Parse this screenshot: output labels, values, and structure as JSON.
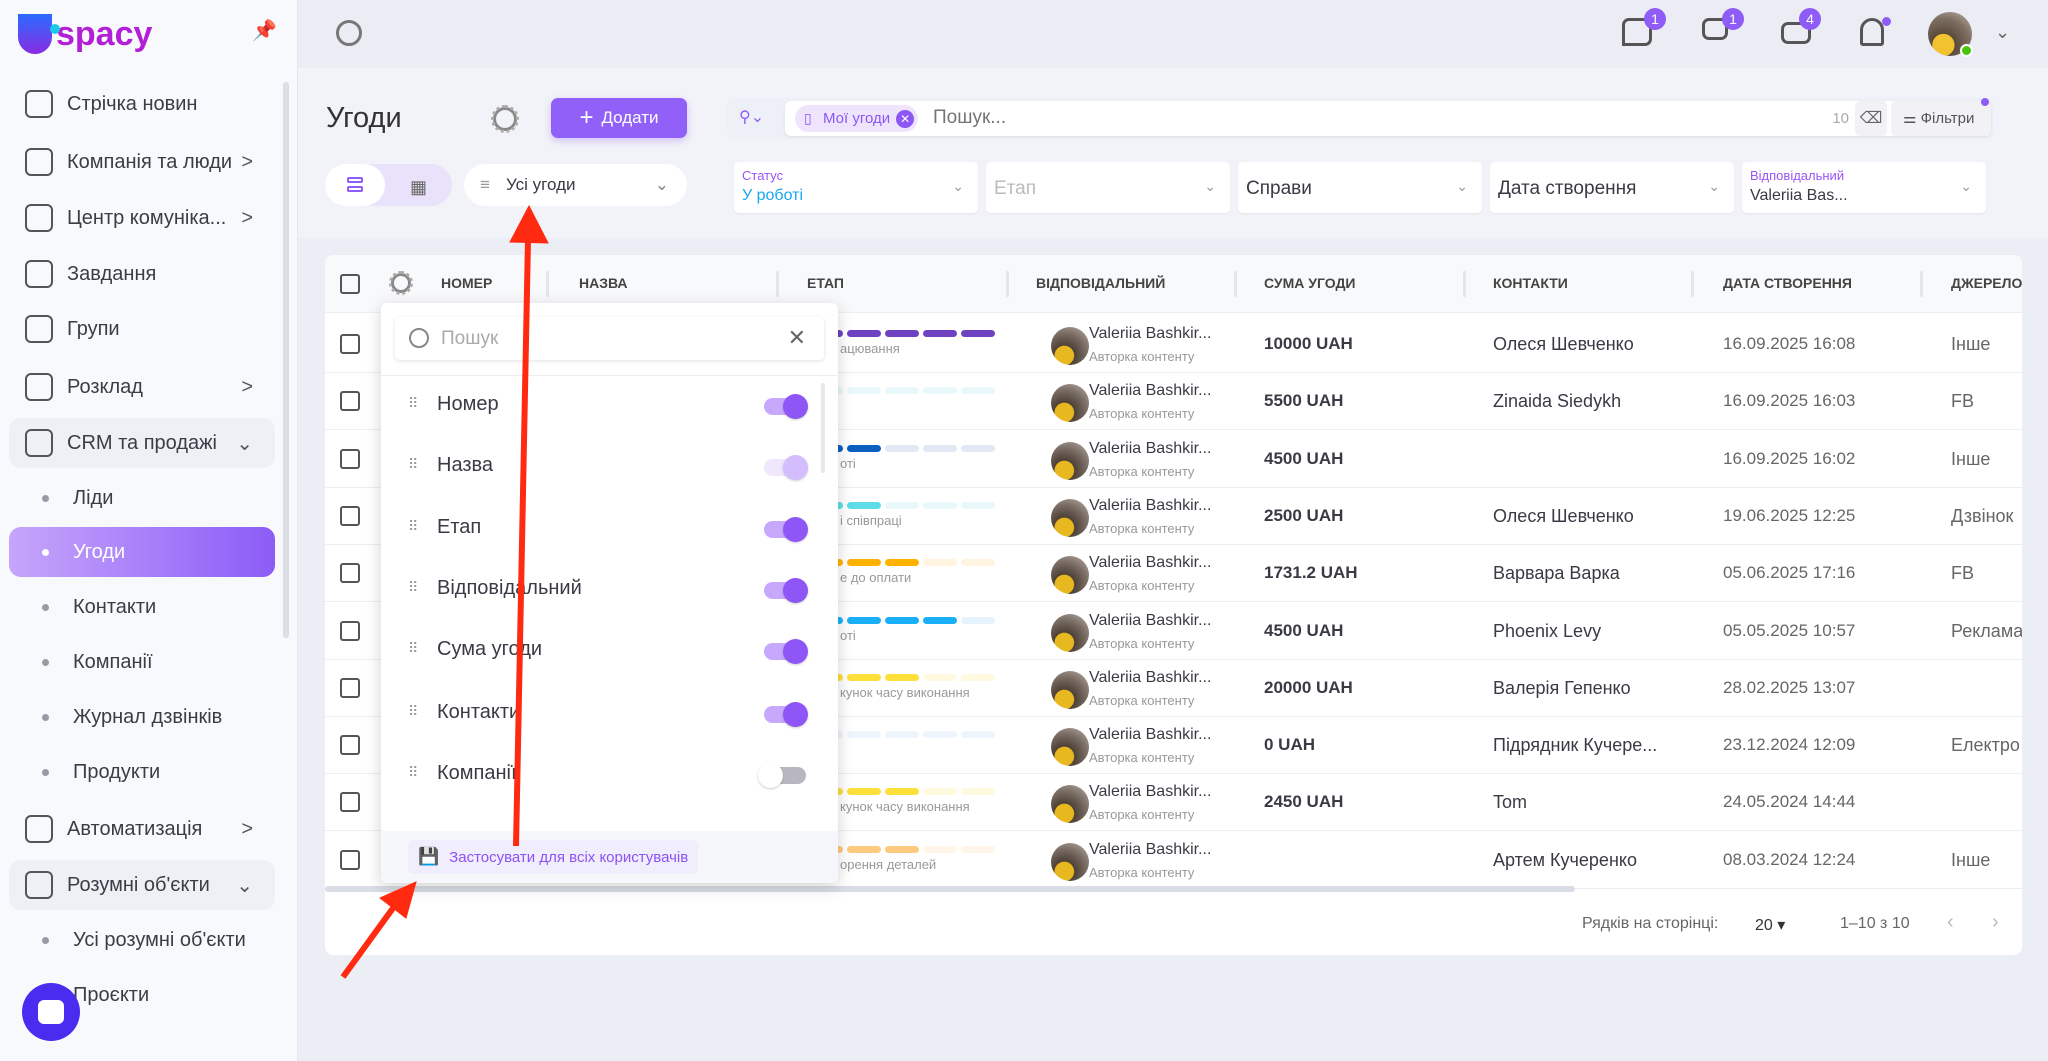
{
  "app": {
    "logo": "spacy"
  },
  "sidebar": {
    "items": [
      {
        "label": "Стрічка новин",
        "icon": "home-icon"
      },
      {
        "label": "Компанія та люди",
        "icon": "building-icon",
        "chevron": ">"
      },
      {
        "label": "Центр комуніка...",
        "icon": "chat-edit-icon",
        "chevron": ">"
      },
      {
        "label": "Завдання",
        "icon": "check-circle-icon"
      },
      {
        "label": "Групи",
        "icon": "users-icon"
      },
      {
        "label": "Розклад",
        "icon": "calendar-icon",
        "chevron": ">"
      },
      {
        "label": "CRM та продажі",
        "icon": "database-icon",
        "chevron": "⌄",
        "group": true
      },
      {
        "label": "Ліди",
        "sub": true
      },
      {
        "label": "Угоди",
        "sub": true,
        "active": true
      },
      {
        "label": "Контакти",
        "sub": true
      },
      {
        "label": "Компанії",
        "sub": true
      },
      {
        "label": "Журнал дзвінків",
        "sub": true
      },
      {
        "label": "Продукти",
        "sub": true
      },
      {
        "label": "Автоматизація",
        "icon": "lightning-icon",
        "chevron": ">"
      },
      {
        "label": "Розумні об'єкти",
        "icon": "scan-icon",
        "chevron": "⌄",
        "group": true
      },
      {
        "label": "Усі розумні об'єкти",
        "sub": true
      },
      {
        "label": "Проєкти",
        "sub": true
      }
    ]
  },
  "topbar": {
    "badges": {
      "comments": "1",
      "chats": "1",
      "mail": "4"
    }
  },
  "header": {
    "title": "Угоди",
    "add_label": "Додати",
    "view_select": "Усі угоди",
    "search": {
      "chip": "Мої угоди",
      "placeholder": "Пошук...",
      "count": "10",
      "filters_label": "Фільтри"
    },
    "filters": [
      {
        "label": "Статус",
        "value": "У роботі"
      },
      {
        "placeholder": "Етап"
      },
      {
        "value": "Справи"
      },
      {
        "value": "Дата створення"
      },
      {
        "label": "Відповідальний",
        "value": "Valeriia Bas..."
      }
    ]
  },
  "table": {
    "columns": [
      "НОМЕР",
      "НАЗВА",
      "ЕТАП",
      "ВІДПОВІДАЛЬНИЙ",
      "СУМА УГОДИ",
      "КОНТАКТИ",
      "ДАТА СТВОРЕННЯ",
      "ДЖЕРЕЛО"
    ],
    "rows": [
      {
        "stage": "ацювання",
        "stage_color": "#6f42c1",
        "stage_bg": "#e9e0f8",
        "filled": 5,
        "resp": "Valeriia Bashkir...",
        "role": "Авторка контенту",
        "sum": "10000 UAH",
        "contact": "Олеся Шевченко",
        "date": "16.09.2025 16:08",
        "source": "Інше"
      },
      {
        "stage": "",
        "stage_color": "#c9f1f5",
        "stage_bg": "#e9f8fa",
        "filled": 0,
        "resp": "Valeriia Bashkir...",
        "role": "Авторка контенту",
        "sum": "5500 UAH",
        "contact": "Zinaida Siedykh",
        "date": "16.09.2025 16:03",
        "source": "FB"
      },
      {
        "stage": "оті",
        "stage_color": "#0b5fc0",
        "stage_bg": "#e2e9f5",
        "filled": 2,
        "resp": "Valeriia Bashkir...",
        "role": "Авторка контенту",
        "sum": "4500 UAH",
        "contact": "",
        "date": "16.09.2025 16:02",
        "source": "Інше"
      },
      {
        "stage": "і співпраці",
        "stage_color": "#5edde6",
        "stage_bg": "#e9f8fa",
        "filled": 2,
        "resp": "Valeriia Bashkir...",
        "role": "Авторка контенту",
        "sum": "2500 UAH",
        "contact": "Олеся Шевченко",
        "date": "19.06.2025 12:25",
        "source": "Дзвінок"
      },
      {
        "stage": "е до оплати",
        "stage_color": "#ffb300",
        "stage_bg": "#fff4e0",
        "filled": 3,
        "resp": "Valeriia Bashkir...",
        "role": "Авторка контенту",
        "sum": "1731.2 UAH",
        "contact": "Варвара Варка",
        "date": "05.06.2025 17:16",
        "source": "FB"
      },
      {
        "stage": "оті",
        "stage_color": "#1ab0f8",
        "stage_bg": "#e6f3fd",
        "filled": 4,
        "resp": "Valeriia Bashkir...",
        "role": "Авторка контенту",
        "sum": "4500 UAH",
        "contact": "Phoenix Levy",
        "date": "05.05.2025 10:57",
        "source": "Реклама"
      },
      {
        "stage": "кунок часу виконання",
        "stage_color": "#fde03a",
        "stage_bg": "#fff9e0",
        "filled": 3,
        "resp": "Valeriia Bashkir...",
        "role": "Авторка контенту",
        "sum": "20000 UAH",
        "contact": "Валерія Гепенко",
        "date": "28.02.2025 13:07",
        "source": ""
      },
      {
        "stage": "",
        "stage_color": "#e6f1fb",
        "stage_bg": "#eef5fc",
        "filled": 0,
        "resp": "Valeriia Bashkir...",
        "role": "Авторка контенту",
        "sum": "0 UAH",
        "contact": "Підрядник Кучере...",
        "date": "23.12.2024 12:09",
        "source": "Електро"
      },
      {
        "stage": "кунок часу виконання",
        "stage_color": "#fde03a",
        "stage_bg": "#fff9e0",
        "filled": 3,
        "resp": "Valeriia Bashkir...",
        "role": "Авторка контенту",
        "sum": "2450 UAH",
        "contact": "Tom",
        "date": "24.05.2024 14:44",
        "source": ""
      },
      {
        "stage": "орення деталей",
        "stage_color": "#fdca80",
        "stage_bg": "#fff5e8",
        "filled": 3,
        "resp": "Valeriia Bashkir...",
        "role": "Авторка контенту",
        "sum": "",
        "contact": "Артем Кучеренко",
        "date": "08.03.2024 12:24",
        "source": "Інше"
      }
    ],
    "pagination": {
      "rows_label": "Рядків на сторінці:",
      "rows_value": "20",
      "range": "1–10 з 10"
    }
  },
  "column_popup": {
    "search_placeholder": "Пошук",
    "items": [
      {
        "label": "Номер",
        "state": "on"
      },
      {
        "label": "Назва",
        "state": "disabled"
      },
      {
        "label": "Етап",
        "state": "on"
      },
      {
        "label": "Відповідальний",
        "state": "on"
      },
      {
        "label": "Сума угоди",
        "state": "on"
      },
      {
        "label": "Контакти",
        "state": "on"
      },
      {
        "label": "Компанії",
        "state": "off"
      }
    ],
    "apply_label": "Застосувати для всіх користувачів"
  },
  "colors": {
    "accent": "#9160f8",
    "annotation_arrow": "#ff2a10"
  }
}
